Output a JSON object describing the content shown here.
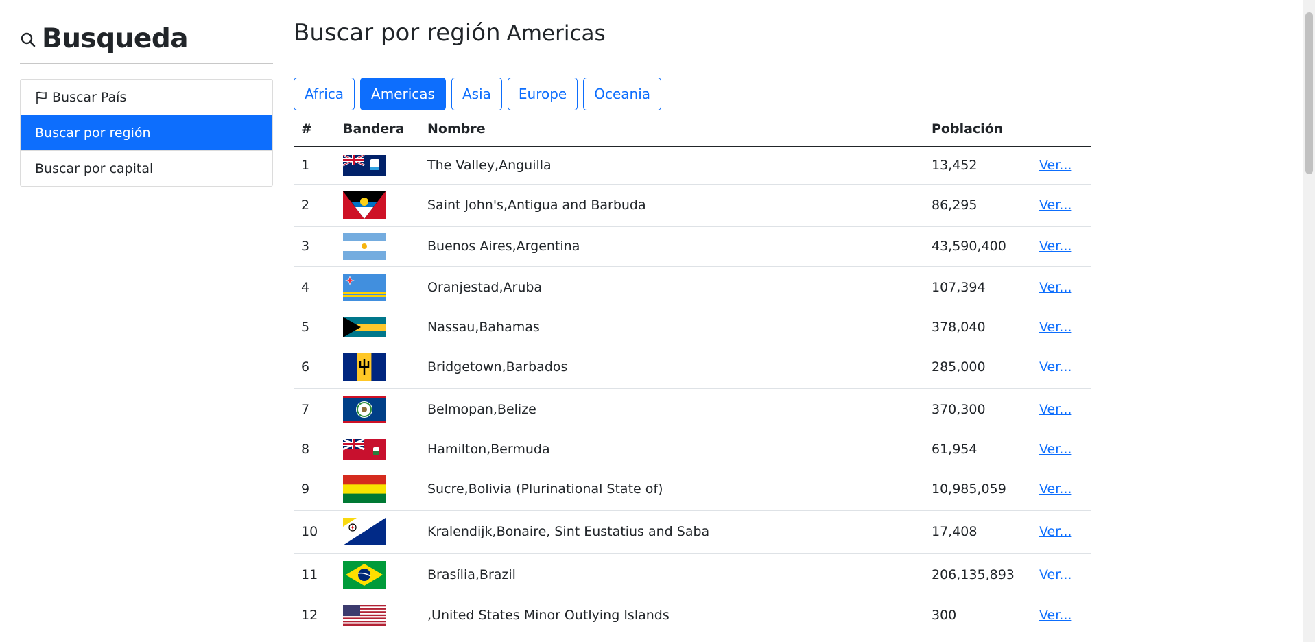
{
  "sidebar": {
    "title": "Busqueda",
    "items": [
      {
        "label": "Buscar País"
      },
      {
        "label": "Buscar por región"
      },
      {
        "label": "Buscar por capital"
      }
    ]
  },
  "main": {
    "title": "Buscar por región",
    "region": "Americas",
    "region_buttons": [
      "Africa",
      "Americas",
      "Asia",
      "Europe",
      "Oceania"
    ],
    "active_region": "Americas",
    "table": {
      "headers": [
        "#",
        "Bandera",
        "Nombre",
        "Población"
      ],
      "rows": [
        {
          "num": "1",
          "name": "The Valley,Anguilla",
          "population": "13,452",
          "link": "Ver...",
          "flag": "anguilla-flag-icon"
        },
        {
          "num": "2",
          "name": "Saint John's,Antigua and Barbuda",
          "population": "86,295",
          "link": "Ver...",
          "flag": "antigua-flag-icon"
        },
        {
          "num": "3",
          "name": "Buenos Aires,Argentina",
          "population": "43,590,400",
          "link": "Ver...",
          "flag": "argentina-flag-icon"
        },
        {
          "num": "4",
          "name": "Oranjestad,Aruba",
          "population": "107,394",
          "link": "Ver...",
          "flag": "aruba-flag-icon"
        },
        {
          "num": "5",
          "name": "Nassau,Bahamas",
          "population": "378,040",
          "link": "Ver...",
          "flag": "bahamas-flag-icon"
        },
        {
          "num": "6",
          "name": "Bridgetown,Barbados",
          "population": "285,000",
          "link": "Ver...",
          "flag": "barbados-flag-icon"
        },
        {
          "num": "7",
          "name": "Belmopan,Belize",
          "population": "370,300",
          "link": "Ver...",
          "flag": "belize-flag-icon"
        },
        {
          "num": "8",
          "name": "Hamilton,Bermuda",
          "population": "61,954",
          "link": "Ver...",
          "flag": "bermuda-flag-icon"
        },
        {
          "num": "9",
          "name": "Sucre,Bolivia (Plurinational State of)",
          "population": "10,985,059",
          "link": "Ver...",
          "flag": "bolivia-flag-icon"
        },
        {
          "num": "10",
          "name": "Kralendijk,Bonaire, Sint Eustatius and Saba",
          "population": "17,408",
          "link": "Ver...",
          "flag": "bonaire-flag-icon"
        },
        {
          "num": "11",
          "name": "Brasília,Brazil",
          "population": "206,135,893",
          "link": "Ver...",
          "flag": "brazil-flag-icon"
        },
        {
          "num": "12",
          "name": ",United States Minor Outlying Islands",
          "population": "300",
          "link": "Ver...",
          "flag": "us-flag-icon"
        }
      ]
    }
  },
  "colors": {
    "accent": "#0d6efd",
    "text": "#212529"
  }
}
